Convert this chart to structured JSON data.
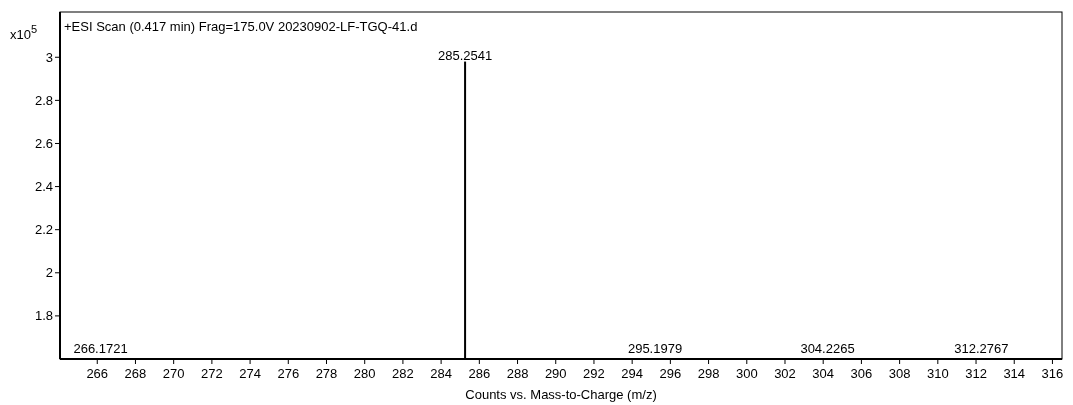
{
  "chart_data": {
    "type": "bar",
    "title": "+ESI Scan (0.417 min) Frag=175.0V 20230902-LF-TGQ-41.d",
    "xlabel": "Counts vs. Mass-to-Charge (m/z)",
    "ylabel": "x10$^{5}$",
    "x": [
      285.2541
    ],
    "values": [
      2.98
    ],
    "color": "#000000",
    "annotations": [
      {
        "text": "285.2541",
        "x": 285.2541,
        "y": 2.98
      },
      "266.1721",
      "295.1979",
      "304.2265",
      "312.2767"
    ],
    "xlim": [
      264.05,
      316.5
    ],
    "xticks": [
      266,
      268,
      270,
      272,
      274,
      276,
      278,
      280,
      282,
      284,
      286,
      288,
      290,
      292,
      294,
      296,
      298,
      300,
      302,
      304,
      306,
      308,
      310,
      312,
      314,
      316
    ],
    "ylim": [
      1.6,
      3.21
    ],
    "yticks": [
      1.8,
      2,
      {
        "value": 2.2,
        "label": "2.2"
      },
      2.4,
      2.6,
      2.8,
      3
    ],
    "grid": false
  }
}
